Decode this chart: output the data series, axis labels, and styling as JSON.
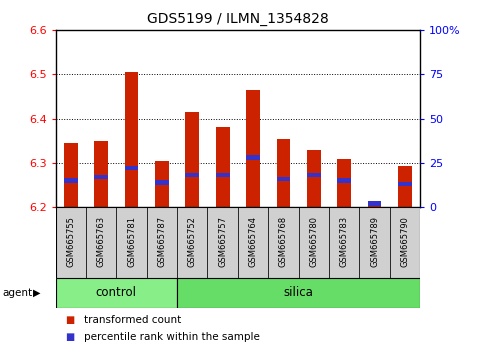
{
  "title": "GDS5199 / ILMN_1354828",
  "samples": [
    "GSM665755",
    "GSM665763",
    "GSM665781",
    "GSM665787",
    "GSM665752",
    "GSM665757",
    "GSM665764",
    "GSM665768",
    "GSM665780",
    "GSM665783",
    "GSM665789",
    "GSM665790"
  ],
  "groups": [
    "control",
    "control",
    "control",
    "control",
    "silica",
    "silica",
    "silica",
    "silica",
    "silica",
    "silica",
    "silica",
    "silica"
  ],
  "transformed_count": [
    6.345,
    6.35,
    6.505,
    6.305,
    6.415,
    6.38,
    6.465,
    6.355,
    6.33,
    6.308,
    6.21,
    6.293
  ],
  "percentile_rank_norm": [
    0.15,
    0.17,
    0.22,
    0.14,
    0.18,
    0.18,
    0.28,
    0.16,
    0.18,
    0.15,
    0.02,
    0.13
  ],
  "y_min": 6.2,
  "y_max": 6.6,
  "bar_color": "#cc2200",
  "blue_color": "#3333cc",
  "control_color": "#88ee88",
  "silica_color": "#66dd66",
  "bg_gray": "#d0d0d0",
  "n_control": 4,
  "n_silica": 8
}
